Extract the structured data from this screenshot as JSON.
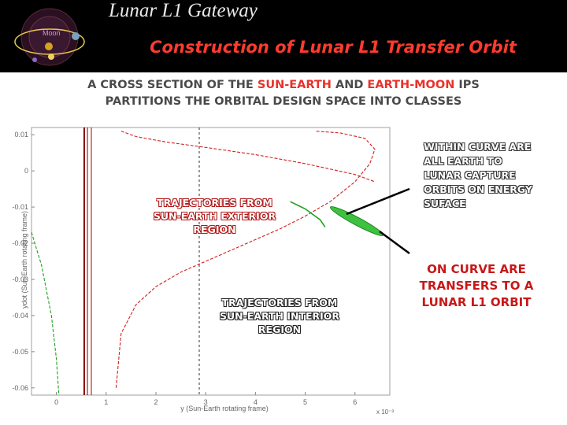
{
  "header": {
    "deck_title": "Lunar L1 Gateway",
    "logo_label": "Moon",
    "slide_title": "Construction of Lunar L1 Transfer Orbit",
    "colors": {
      "background": "#000000",
      "title": "#ff3b2e",
      "deck_title": "#e8e8e8"
    }
  },
  "subtitle": {
    "line1_a": "A CROSS SECTION OF THE ",
    "line1_b": "SUN-EARTH",
    "line1_c": " AND ",
    "line1_d": "EARTH-MOON",
    "line1_e": " IPS",
    "line2": "PARTITIONS THE ORBITAL DESIGN SPACE INTO CLASSES"
  },
  "plot": {
    "xlabel": "y (Sun-Earth rotating frame)",
    "ylabel": "ydot (Sun-Earth rotating frame)",
    "x_exponent": "x 10⁻³",
    "x_ticks": [
      "0",
      "1",
      "2",
      "3",
      "4",
      "5",
      "6"
    ],
    "y_ticks": [
      "0.01",
      "0",
      "-0.01",
      "-0.02",
      "-0.03",
      "-0.04",
      "-0.05",
      "-0.06"
    ]
  },
  "annotations": {
    "exterior": [
      "TRAJECTORIES FROM",
      "SUN-EARTH EXTERIOR",
      "REGION"
    ],
    "interior": [
      "TRAJECTORIES FROM",
      "SUN-EARTH INTERIOR",
      "REGION"
    ],
    "within": [
      "WITHIN CURVE ARE",
      "ALL EARTH TO",
      "LUNAR CAPTURE",
      "ORBITS ON ENERGY",
      "SUFACE"
    ],
    "on_curve": [
      "ON CURVE ARE",
      "TRANSFERS TO A",
      "LUNAR L1 ORBIT"
    ]
  },
  "chart_data": {
    "type": "line",
    "xlabel": "y (Sun-Earth rotating frame)",
    "ylabel": "ydot (Sun-Earth rotating frame)",
    "xlim": [
      -0.0005,
      0.0067
    ],
    "ylim": [
      -0.062,
      0.012
    ],
    "x_scale_label": "x 10⁻³",
    "series": [
      {
        "color": "#d02020",
        "style": "dashed",
        "x": [
          0.0012,
          0.0013,
          0.0016,
          0.002,
          0.0025,
          0.003,
          0.0035,
          0.004,
          0.0045,
          0.005,
          0.0055,
          0.006,
          0.0063,
          0.0064,
          0.0062,
          0.0057,
          0.0052
        ],
        "y": [
          -0.06,
          -0.045,
          -0.037,
          -0.032,
          -0.028,
          -0.025,
          -0.022,
          -0.019,
          -0.016,
          -0.0125,
          -0.0085,
          -0.003,
          0.002,
          0.006,
          0.009,
          0.0105,
          0.011
        ]
      },
      {
        "color": "#d02020",
        "style": "dashed",
        "x": [
          0.0013,
          0.0016,
          0.0022,
          0.003,
          0.004,
          0.005,
          0.006,
          0.0064
        ],
        "y": [
          0.011,
          0.0095,
          0.008,
          0.0065,
          0.0045,
          0.002,
          -0.001,
          -0.003
        ]
      },
      {
        "color": "#20a020",
        "style": "dashed",
        "x": [
          -0.0005,
          -0.0003,
          -0.0001,
          0.0,
          5e-05
        ],
        "y": [
          -0.017,
          -0.026,
          -0.04,
          -0.052,
          -0.062
        ]
      },
      {
        "color": "#20a020",
        "style": "solid",
        "x": [
          0.0047,
          0.005,
          0.0053,
          0.0054
        ],
        "y": [
          -0.0085,
          -0.0105,
          -0.0135,
          -0.0155
        ]
      }
    ]
  }
}
